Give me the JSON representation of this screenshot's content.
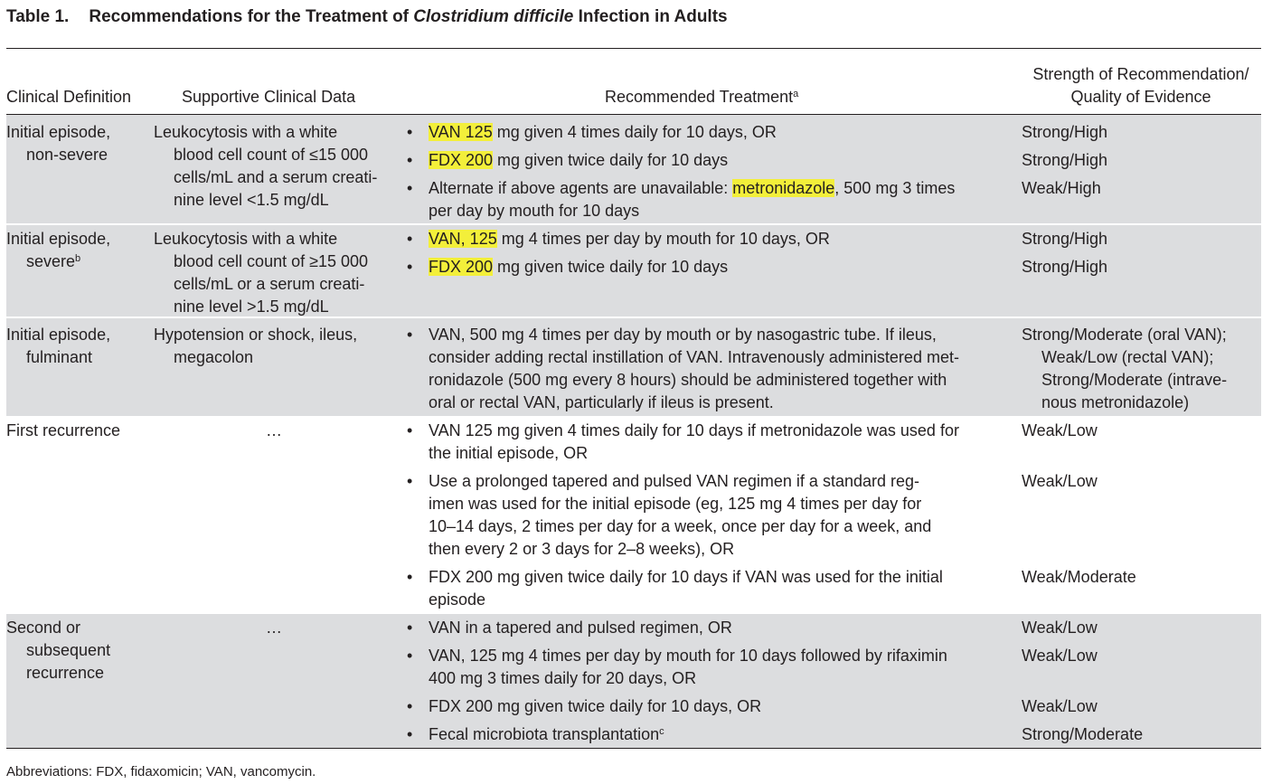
{
  "table": {
    "label": "Table 1.",
    "title_pre": "Recommendations for the Treatment of ",
    "title_italic": "Clostridium difficile",
    "title_post": " Infection in Adults"
  },
  "headers": {
    "clinical_definition": "Clinical Definition",
    "supportive": "Supportive Clinical Data",
    "treatment": "Recommended Treatment",
    "treatment_sup": "a",
    "strength_l1": "Strength of Recommendation/",
    "strength_l2": "Quality of Evidence"
  },
  "rows": [
    {
      "def": [
        "Initial episode,",
        "non-severe"
      ],
      "support": [
        "Leukocytosis with a white",
        "blood cell count of ≤15 000",
        "cells/mL and a serum creati-",
        "nine level <1.5 mg/dL"
      ],
      "items": [
        {
          "hl": "VAN 125",
          "rest": " mg given 4 times daily for 10 days, OR",
          "strength": "Strong/High"
        },
        {
          "hl": "FDX 200",
          "rest": " mg given twice daily for 10 days",
          "strength": "Strong/High"
        },
        {
          "pre": "Alternate if above agents are unavailable: ",
          "hl": "metronidazole",
          "rest": ", 500 mg 3 times",
          "line2": "per day by mouth for 10 days",
          "strength": "Weak/High"
        }
      ]
    },
    {
      "def": [
        "Initial episode,",
        "severe"
      ],
      "def_sup": "b",
      "support": [
        "Leukocytosis with a white",
        "blood cell count of ≥15 000",
        "cells/mL or a serum creati-",
        "nine level >1.5 mg/dL"
      ],
      "items": [
        {
          "hl": "VAN, 125",
          "rest": " mg 4 times per day by mouth for 10 days, OR",
          "strength": "Strong/High"
        },
        {
          "hl": "FDX 200",
          "rest": " mg given twice daily for 10 days",
          "strength": "Strong/High"
        }
      ]
    },
    {
      "def": [
        "Initial episode,",
        "fulminant"
      ],
      "support": [
        "Hypotension or shock, ileus,",
        "megacolon"
      ],
      "items": [
        {
          "lines": [
            "VAN, 500 mg 4 times per day by mouth or by nasogastric tube. If ileus,",
            "consider adding rectal instillation of VAN. Intravenously administered met-",
            "ronidazole (500 mg every 8 hours) should be administered together with",
            "oral or rectal VAN, particularly if ileus is present."
          ],
          "strength_lines": [
            "Strong/Moderate (oral VAN);",
            "Weak/Low (rectal VAN);",
            "Strong/Moderate (intrave-",
            "nous metronidazole)"
          ]
        }
      ]
    },
    {
      "def": [
        "First recurrence"
      ],
      "support_ellipsis": "…",
      "items": [
        {
          "lines": [
            "VAN 125 mg given 4 times daily for 10 days if metronidazole was used for",
            "the initial episode, OR"
          ],
          "strength": "Weak/Low"
        },
        {
          "lines": [
            "Use a prolonged tapered and pulsed VAN regimen if a standard reg-",
            "imen was used for the initial episode (eg, 125 mg 4 times per day for",
            "10–14 days, 2 times per day for a week, once per day for a week, and",
            "then every 2 or 3 days for 2–8 weeks), OR"
          ],
          "strength": "Weak/Low"
        },
        {
          "lines": [
            "FDX 200 mg given twice daily for 10 days if VAN was used for the initial",
            "episode"
          ],
          "strength": "Weak/Moderate"
        }
      ]
    },
    {
      "def": [
        "Second or",
        "subsequent",
        "recurrence"
      ],
      "support_ellipsis": "…",
      "items": [
        {
          "lines": [
            "VAN in a tapered and pulsed regimen, OR"
          ],
          "strength": "Weak/Low"
        },
        {
          "lines": [
            "VAN, 125 mg 4 times per day by mouth for 10 days followed by rifaximin",
            "400 mg 3 times daily for 20 days, OR"
          ],
          "strength": "Weak/Low"
        },
        {
          "lines": [
            "FDX 200 mg given twice daily for 10 days, OR"
          ],
          "strength": "Weak/Low"
        },
        {
          "lines": [
            "Fecal microbiota transplantation"
          ],
          "sup": "c",
          "strength": "Strong/Moderate"
        }
      ]
    }
  ],
  "bullet": "•",
  "footnote": "Abbreviations: FDX, fidaxomicin; VAN, vancomycin.",
  "colors": {
    "shade": "#dcdddf",
    "highlight": "#f3ef3a",
    "text": "#231f20"
  }
}
